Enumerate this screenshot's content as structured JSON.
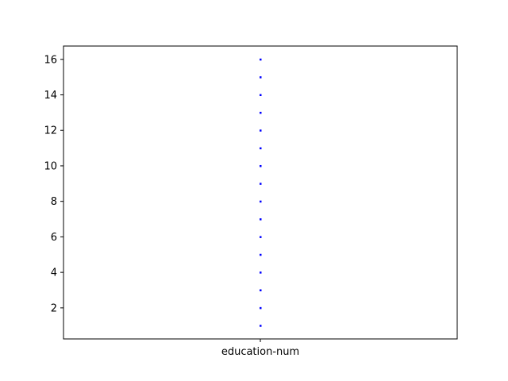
{
  "chart_data": {
    "type": "scatter",
    "categories": [
      "education-num"
    ],
    "series": [
      {
        "category": "education-num",
        "values": [
          1,
          2,
          3,
          4,
          5,
          6,
          7,
          8,
          9,
          10,
          11,
          12,
          13,
          14,
          15,
          16
        ]
      }
    ],
    "ylim": [
      0.25,
      16.75
    ],
    "yticks": [
      2,
      4,
      6,
      8,
      10,
      12,
      14,
      16
    ],
    "title": "",
    "xlabel": "",
    "ylabel": "",
    "grid": false,
    "marker_color": "#0000ff"
  }
}
